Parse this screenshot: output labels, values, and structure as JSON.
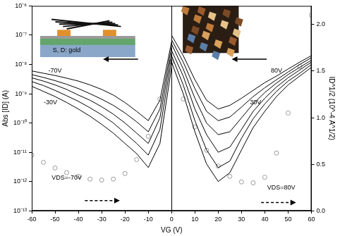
{
  "chart_data": {
    "type": "line",
    "x_label": "VG (V)",
    "y_label": "Abs [ID] (A)",
    "y2_label": "ID^1/2 (10^-4 A^1/2)",
    "log": "y",
    "grid": false,
    "x": [
      -60,
      -55,
      -50,
      -45,
      -40,
      -35,
      -30,
      -25,
      -20,
      -15,
      -10,
      -5,
      0,
      5,
      10,
      15,
      20,
      25,
      30,
      35,
      40,
      45,
      50,
      55,
      60
    ],
    "xlim": [
      -60,
      60
    ],
    "xticks": [
      -60,
      -50,
      -40,
      -30,
      -20,
      -10,
      0,
      10,
      20,
      30,
      40,
      50,
      60
    ],
    "ylim": [
      1e-13,
      1e-06
    ],
    "yticks": [
      {
        "value": 1e-13,
        "label": "10⁻¹³"
      },
      {
        "value": 1e-12,
        "label": "10⁻¹²"
      },
      {
        "value": 1e-11,
        "label": "10⁻¹¹"
      },
      {
        "value": 1e-10,
        "label": "10⁻¹⁰"
      },
      {
        "value": 1e-09,
        "label": "10⁻⁹"
      },
      {
        "value": 1e-08,
        "label": "10⁻⁸"
      },
      {
        "value": 1e-07,
        "label": "10⁻⁷"
      },
      {
        "value": 1e-06,
        "label": "10⁻⁶"
      }
    ],
    "y2lim": [
      0,
      2.2
    ],
    "y2ticks": [
      {
        "value": 0,
        "label": "0.0"
      },
      {
        "value": 0.5,
        "label": "0.5"
      },
      {
        "value": 1,
        "label": "1.0"
      },
      {
        "value": 1.5,
        "label": "1.5"
      },
      {
        "value": 2,
        "label": "2.0"
      }
    ],
    "series": [
      {
        "type": "line",
        "color": "#000000",
        "line_style": "solid",
        "values": [
          6e-09,
          5e-09,
          4.2e-09,
          3.4e-09,
          2.7e-09,
          2e-09,
          1.4e-09,
          9e-10,
          5e-10,
          2.5e-10,
          1.2e-10,
          6e-10,
          6e-08,
          null,
          null,
          null,
          null,
          null,
          null,
          null,
          null,
          null,
          null,
          null,
          null
        ]
      },
      {
        "type": "line",
        "color": "#000000",
        "line_style": "solid",
        "values": [
          4.5e-09,
          3.6e-09,
          2.8e-09,
          2.1e-09,
          1.5e-09,
          1e-09,
          6.5e-10,
          4e-10,
          2.2e-10,
          1.1e-10,
          5e-11,
          3e-10,
          4e-08,
          null,
          null,
          null,
          null,
          null,
          null,
          null,
          null,
          null,
          null,
          null,
          null
        ]
      },
      {
        "type": "line",
        "color": "#000000",
        "line_style": "solid",
        "values": [
          3.5e-09,
          2.7e-09,
          2e-09,
          1.4e-09,
          9e-10,
          6e-10,
          3.6e-10,
          2e-10,
          1e-10,
          4.5e-11,
          2e-11,
          1.5e-10,
          2.5e-08,
          null,
          null,
          null,
          null,
          null,
          null,
          null,
          null,
          null,
          null,
          null,
          null
        ]
      },
      {
        "type": "line",
        "color": "#000000",
        "line_style": "solid",
        "values": [
          2.6e-09,
          1.9e-09,
          1.3e-09,
          8.5e-10,
          5.5e-10,
          3.3e-10,
          1.9e-10,
          1e-10,
          4.5e-11,
          2e-11,
          8e-12,
          6e-11,
          1.5e-08,
          null,
          null,
          null,
          null,
          null,
          null,
          null,
          null,
          null,
          null,
          null,
          null
        ]
      },
      {
        "type": "line",
        "color": "#000000",
        "line_style": "solid",
        "values": [
          1.8e-09,
          1.2e-09,
          8e-10,
          5e-10,
          3e-10,
          1.7e-10,
          9e-11,
          4.5e-11,
          2e-11,
          9e-12,
          3e-12,
          2e-11,
          8e-09,
          null,
          null,
          null,
          null,
          null,
          null,
          null,
          null,
          null,
          null,
          null,
          null
        ]
      },
      {
        "type": "line",
        "color": "#000000",
        "line_style": "solid",
        "values": [
          null,
          null,
          null,
          null,
          null,
          null,
          null,
          null,
          null,
          null,
          null,
          null,
          1e-07,
          2e-08,
          3e-09,
          6e-10,
          3e-10,
          4e-10,
          7e-10,
          1.3e-09,
          2.4e-09,
          4e-09,
          7e-09,
          1.2e-08,
          2e-08
        ]
      },
      {
        "type": "line",
        "color": "#000000",
        "line_style": "solid",
        "values": [
          null,
          null,
          null,
          null,
          null,
          null,
          null,
          null,
          null,
          null,
          null,
          null,
          7e-08,
          1.2e-08,
          1.5e-09,
          2.5e-10,
          1.2e-10,
          1.6e-10,
          3.5e-10,
          8e-10,
          1.6e-09,
          3e-09,
          5.5e-09,
          1e-08,
          1.7e-08
        ]
      },
      {
        "type": "line",
        "color": "#000000",
        "line_style": "solid",
        "values": [
          null,
          null,
          null,
          null,
          null,
          null,
          null,
          null,
          null,
          null,
          null,
          null,
          5e-08,
          7e-09,
          7e-10,
          1e-10,
          4e-11,
          5e-11,
          1.5e-10,
          4.5e-10,
          1.1e-09,
          2.3e-09,
          4.5e-09,
          8e-09,
          1.4e-08
        ]
      },
      {
        "type": "line",
        "color": "#000000",
        "line_style": "solid",
        "values": [
          null,
          null,
          null,
          null,
          null,
          null,
          null,
          null,
          null,
          null,
          null,
          null,
          3e-08,
          4e-09,
          3e-10,
          4e-11,
          1e-11,
          1.5e-11,
          6e-11,
          2.5e-10,
          7e-10,
          1.7e-09,
          3.5e-09,
          6.5e-09,
          1.2e-08
        ]
      },
      {
        "type": "line",
        "color": "#000000",
        "line_style": "solid",
        "values": [
          null,
          null,
          null,
          null,
          null,
          null,
          null,
          null,
          null,
          null,
          null,
          null,
          2e-08,
          2e-09,
          1.2e-10,
          1.2e-11,
          3e-12,
          5e-12,
          3e-11,
          1.4e-10,
          4.5e-10,
          1.2e-09,
          2.7e-09,
          5e-09,
          1e-08
        ]
      },
      {
        "type": "line",
        "color": "#000000",
        "line_style": "solid",
        "values": [
          null,
          null,
          null,
          null,
          null,
          null,
          null,
          null,
          null,
          null,
          null,
          null,
          1.2e-08,
          1e-09,
          5e-11,
          4e-12,
          1e-12,
          2e-12,
          1.2e-11,
          7e-11,
          2.5e-10,
          8e-10,
          2e-09,
          4e-09,
          8e-09
        ]
      },
      {
        "type": "scatter",
        "axis": "y2",
        "color": "#999999",
        "marker": "circle",
        "line_style": "none",
        "values": [
          0.6,
          0.52,
          0.46,
          0.41,
          0.37,
          0.34,
          0.33,
          0.34,
          0.4,
          0.55,
          0.8,
          1.2,
          1.6,
          null,
          null,
          null,
          null,
          null,
          null,
          null,
          null,
          null,
          null,
          null,
          null
        ]
      },
      {
        "type": "scatter",
        "axis": "y2",
        "color": "#999999",
        "marker": "circle",
        "line_style": "none",
        "values": [
          null,
          null,
          null,
          null,
          null,
          null,
          null,
          null,
          null,
          null,
          null,
          null,
          1.6,
          1.2,
          0.9,
          0.65,
          0.48,
          0.37,
          0.31,
          0.3,
          0.36,
          0.62,
          1.05,
          1.55,
          2.1
        ]
      }
    ],
    "annotations": [
      {
        "text": "S, D: gold",
        "x": -45,
        "y": 3e-08
      },
      {
        "text": "-70V",
        "x": -50,
        "y": 6e-09
      },
      {
        "text": "-30V",
        "x": -52,
        "y": 5e-10
      },
      {
        "text": "80V",
        "x": 45,
        "y": 6e-09
      },
      {
        "text": "30V",
        "x": 36,
        "y": 5e-10
      },
      {
        "text": "VDS=-70V",
        "x": -45,
        "y": 1.3e-12
      },
      {
        "text": "VDS=80V",
        "x": 47,
        "y": 6e-13
      }
    ]
  }
}
